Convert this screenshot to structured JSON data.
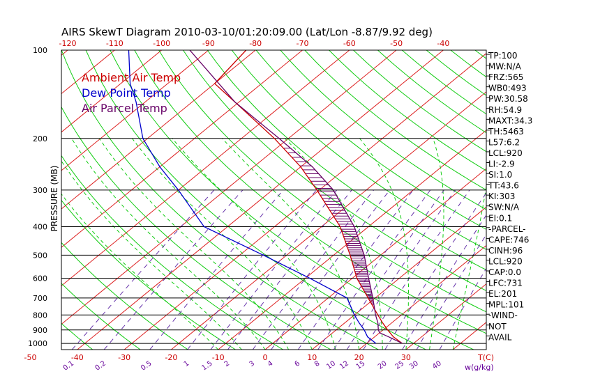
{
  "chart_data": {
    "type": "line",
    "subtype": "skew-t log-p sounding",
    "title": "AIRS SkewT Diagram 2010-03-10/01:20:09.00 (Lat/Lon -8.87/9.92 deg)",
    "ylabel": "PRESSURE (MB)",
    "x_bottom_unit_label": "T(C)",
    "mixing_ratio_unit_label": "w(g/kg)",
    "pressure_ticks": [
      "100",
      "200",
      "300",
      "400",
      "500",
      "600",
      "700",
      "800",
      "900",
      "1000"
    ],
    "top_temperature_ticks": [
      "-120",
      "-110",
      "-100",
      "-90",
      "-80",
      "-70",
      "-60",
      "-50",
      "-40"
    ],
    "bottom_temperature_ticks": [
      "-50",
      "-40",
      "-30",
      "-20",
      "-10",
      "0",
      "10",
      "20",
      "30"
    ],
    "mixing_ratio_ticks": [
      "0.1",
      "0.2",
      "0.5",
      "1",
      "1.5",
      "2",
      "3",
      "4",
      "6",
      "8",
      "10",
      "12",
      "15",
      "20",
      "25",
      "30",
      "40"
    ],
    "legend": [
      "Ambient Air Temp",
      "Dew Point Temp",
      "Air Parcel Temp"
    ],
    "series": [
      {
        "name": "Ambient Air Temp",
        "pressure_mb": [
          1000,
          950,
          900,
          850,
          800,
          700,
          600,
          500,
          400,
          300,
          250,
          200,
          150,
          130,
          100
        ],
        "temperature_c": [
          27.6,
          24.0,
          21.0,
          18.0,
          15.0,
          8.5,
          1.0,
          -6.5,
          -16.0,
          -30.5,
          -40.0,
          -53.0,
          -71.0,
          -80.0,
          -82.0
        ]
      },
      {
        "name": "Dew Point Temp",
        "pressure_mb": [
          1000,
          950,
          900,
          850,
          800,
          700,
          600,
          500,
          400,
          300,
          250,
          200,
          150,
          130,
          100
        ],
        "temperature_c": [
          22.0,
          18.5,
          16.0,
          13.0,
          10.0,
          4.0,
          -9.0,
          -25.0,
          -45.0,
          -60.0,
          -70.0,
          -81.0,
          -92.0,
          -98.0,
          -107.0
        ]
      },
      {
        "name": "Air Parcel Temp",
        "pressure_mb": [
          1000,
          950,
          920,
          900,
          850,
          800,
          700,
          600,
          500,
          400,
          300,
          250,
          200,
          150,
          100
        ],
        "temperature_c": [
          27.6,
          23.0,
          20.0,
          19.0,
          17.0,
          14.5,
          9.5,
          3.5,
          -3.5,
          -13.0,
          -27.0,
          -37.5,
          -52.0,
          -71.0,
          -94.0
        ]
      }
    ],
    "indices": [
      "TP:100",
      "MW:N/A",
      "FRZ:565",
      "WB0:493",
      "PW:30.58",
      "RH:54.9",
      "MAXT:34.3",
      "TH:5463",
      "L57:6.2",
      "LCL:920",
      "LI:-2.9",
      "SI:1.0",
      "TT:43.6",
      "KI:303",
      "SW:N/A",
      "EI:0.1",
      "-PARCEL-",
      "CAPE:746",
      "CINH:96",
      "LCL:920",
      "CAP:0.0",
      "LFC:731",
      "EL:201",
      "MPL:101",
      "-WIND-",
      "NOT",
      "AVAIL"
    ],
    "colors": {
      "ambient": "#cc0000",
      "dewpoint": "#0000cc",
      "parcel": "#660066",
      "isotherm": "#dd2020",
      "dry_adiabat": "#11cc11",
      "moist_adiabat": "#11cc11",
      "mixing_ratio": "#6633aa",
      "isobar": "#000000",
      "top_tick_labels": "#cc0000",
      "bottom_tick_labels": "#cc0000",
      "mixing_tick_labels": "#660099"
    }
  }
}
